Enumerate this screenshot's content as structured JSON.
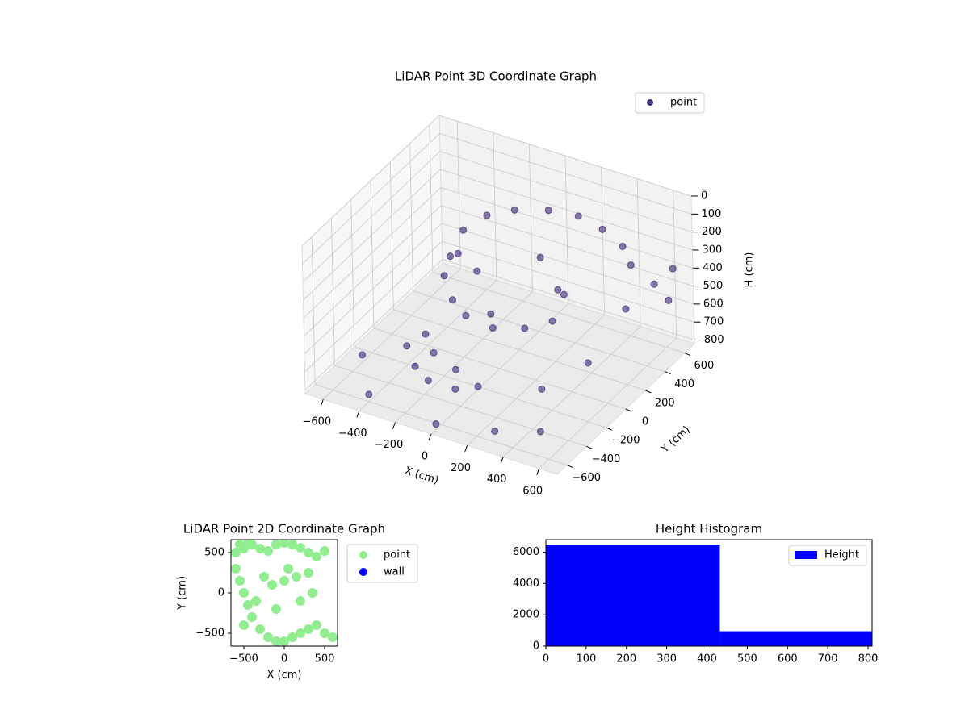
{
  "chart_data": [
    {
      "type": "scatter3d",
      "title": "LiDAR Point 3D Coordinate Graph",
      "xlabel": "X (cm)",
      "ylabel": "Y (cm)",
      "zlabel": "H (cm)",
      "xlim": [
        -700,
        700
      ],
      "ylim": [
        -700,
        700
      ],
      "zlim": [
        820,
        0
      ],
      "xticks": [
        {
          "value": -600,
          "label": "−600"
        },
        {
          "value": -400,
          "label": "−400"
        },
        {
          "value": -200,
          "label": "−200"
        },
        0,
        200,
        400,
        600
      ],
      "yticks": [
        {
          "value": -600,
          "label": "−600"
        },
        {
          "value": -400,
          "label": "−400"
        },
        {
          "value": -200,
          "label": "−200"
        },
        0,
        200,
        400,
        600
      ],
      "zticks": [
        0,
        100,
        200,
        300,
        400,
        500,
        600,
        700,
        800
      ],
      "grid": true,
      "legend": "upper right",
      "series": [
        {
          "name": "point",
          "color": "#46327e",
          "x": [
            -300,
            -250,
            -150,
            0,
            150,
            300,
            450,
            550,
            -320,
            -300,
            -200,
            -100,
            50,
            200,
            300,
            100,
            -350,
            -250,
            -150,
            0,
            100,
            -300,
            -200,
            -50,
            500,
            -600,
            600,
            650,
            -500,
            200,
            -100,
            400,
            700,
            700,
            -400,
            300,
            0,
            -200,
            250,
            550
          ],
          "y": [
            200,
            350,
            450,
            520,
            550,
            520,
            450,
            350,
            100,
            0,
            -100,
            -150,
            -150,
            -100,
            0,
            250,
            -300,
            -400,
            -450,
            -450,
            -400,
            -200,
            -300,
            -350,
            -500,
            -300,
            200,
            400,
            500,
            300,
            100,
            -300,
            500,
            450,
            -600,
            -600,
            -650,
            150,
            150,
            -100
          ],
          "z": [
            250,
            230,
            220,
            210,
            210,
            220,
            230,
            250,
            350,
            400,
            450,
            480,
            500,
            480,
            460,
            300,
            650,
            680,
            700,
            700,
            680,
            620,
            640,
            660,
            750,
            780,
            400,
            350,
            600,
            500,
            600,
            650,
            300,
            450,
            780,
            760,
            790,
            420,
            380,
            560
          ]
        }
      ]
    },
    {
      "type": "scatter",
      "title": "LiDAR Point 2D Coordinate Graph",
      "xlabel": "X (cm)",
      "ylabel": "Y (cm)",
      "xlim": [
        -660,
        660
      ],
      "ylim": [
        -660,
        660
      ],
      "xticks": [
        {
          "value": -500,
          "label": "−500"
        },
        0,
        500
      ],
      "yticks": [
        {
          "value": -500,
          "label": "−500"
        },
        0,
        500
      ],
      "legend": "outside upper right",
      "series": [
        {
          "name": "point",
          "color": "#90ee90",
          "x": [
            -600,
            -550,
            -500,
            -450,
            -400,
            -300,
            -200,
            -100,
            0,
            100,
            200,
            300,
            400,
            500,
            600,
            -600,
            -550,
            -500,
            -450,
            -400,
            -300,
            -200,
            -100,
            0,
            100,
            200,
            300,
            400,
            500,
            -250,
            -150,
            0,
            50,
            150,
            -100,
            200,
            350,
            -350,
            -500,
            300
          ],
          "y": [
            300,
            150,
            0,
            -150,
            -300,
            -450,
            -550,
            -600,
            -600,
            -550,
            -500,
            -450,
            -400,
            -500,
            -550,
            500,
            600,
            550,
            620,
            600,
            550,
            520,
            600,
            620,
            600,
            560,
            500,
            450,
            520,
            200,
            100,
            150,
            300,
            200,
            -200,
            -100,
            0,
            -100,
            -400,
            250
          ]
        },
        {
          "name": "wall",
          "color": "#0000ff",
          "x": [],
          "y": []
        }
      ]
    },
    {
      "type": "histogram",
      "title": "Height Histogram",
      "name": "Height",
      "color": "#0000ff",
      "bins": [
        0,
        432,
        810
      ],
      "values": [
        6480,
        950
      ],
      "xlim": [
        0,
        810
      ],
      "ylim": [
        0,
        6800
      ],
      "xticks": [
        0,
        100,
        200,
        300,
        400,
        500,
        600,
        700,
        800
      ],
      "yticks": [
        0,
        2000,
        4000,
        6000
      ],
      "legend": "upper right"
    }
  ]
}
